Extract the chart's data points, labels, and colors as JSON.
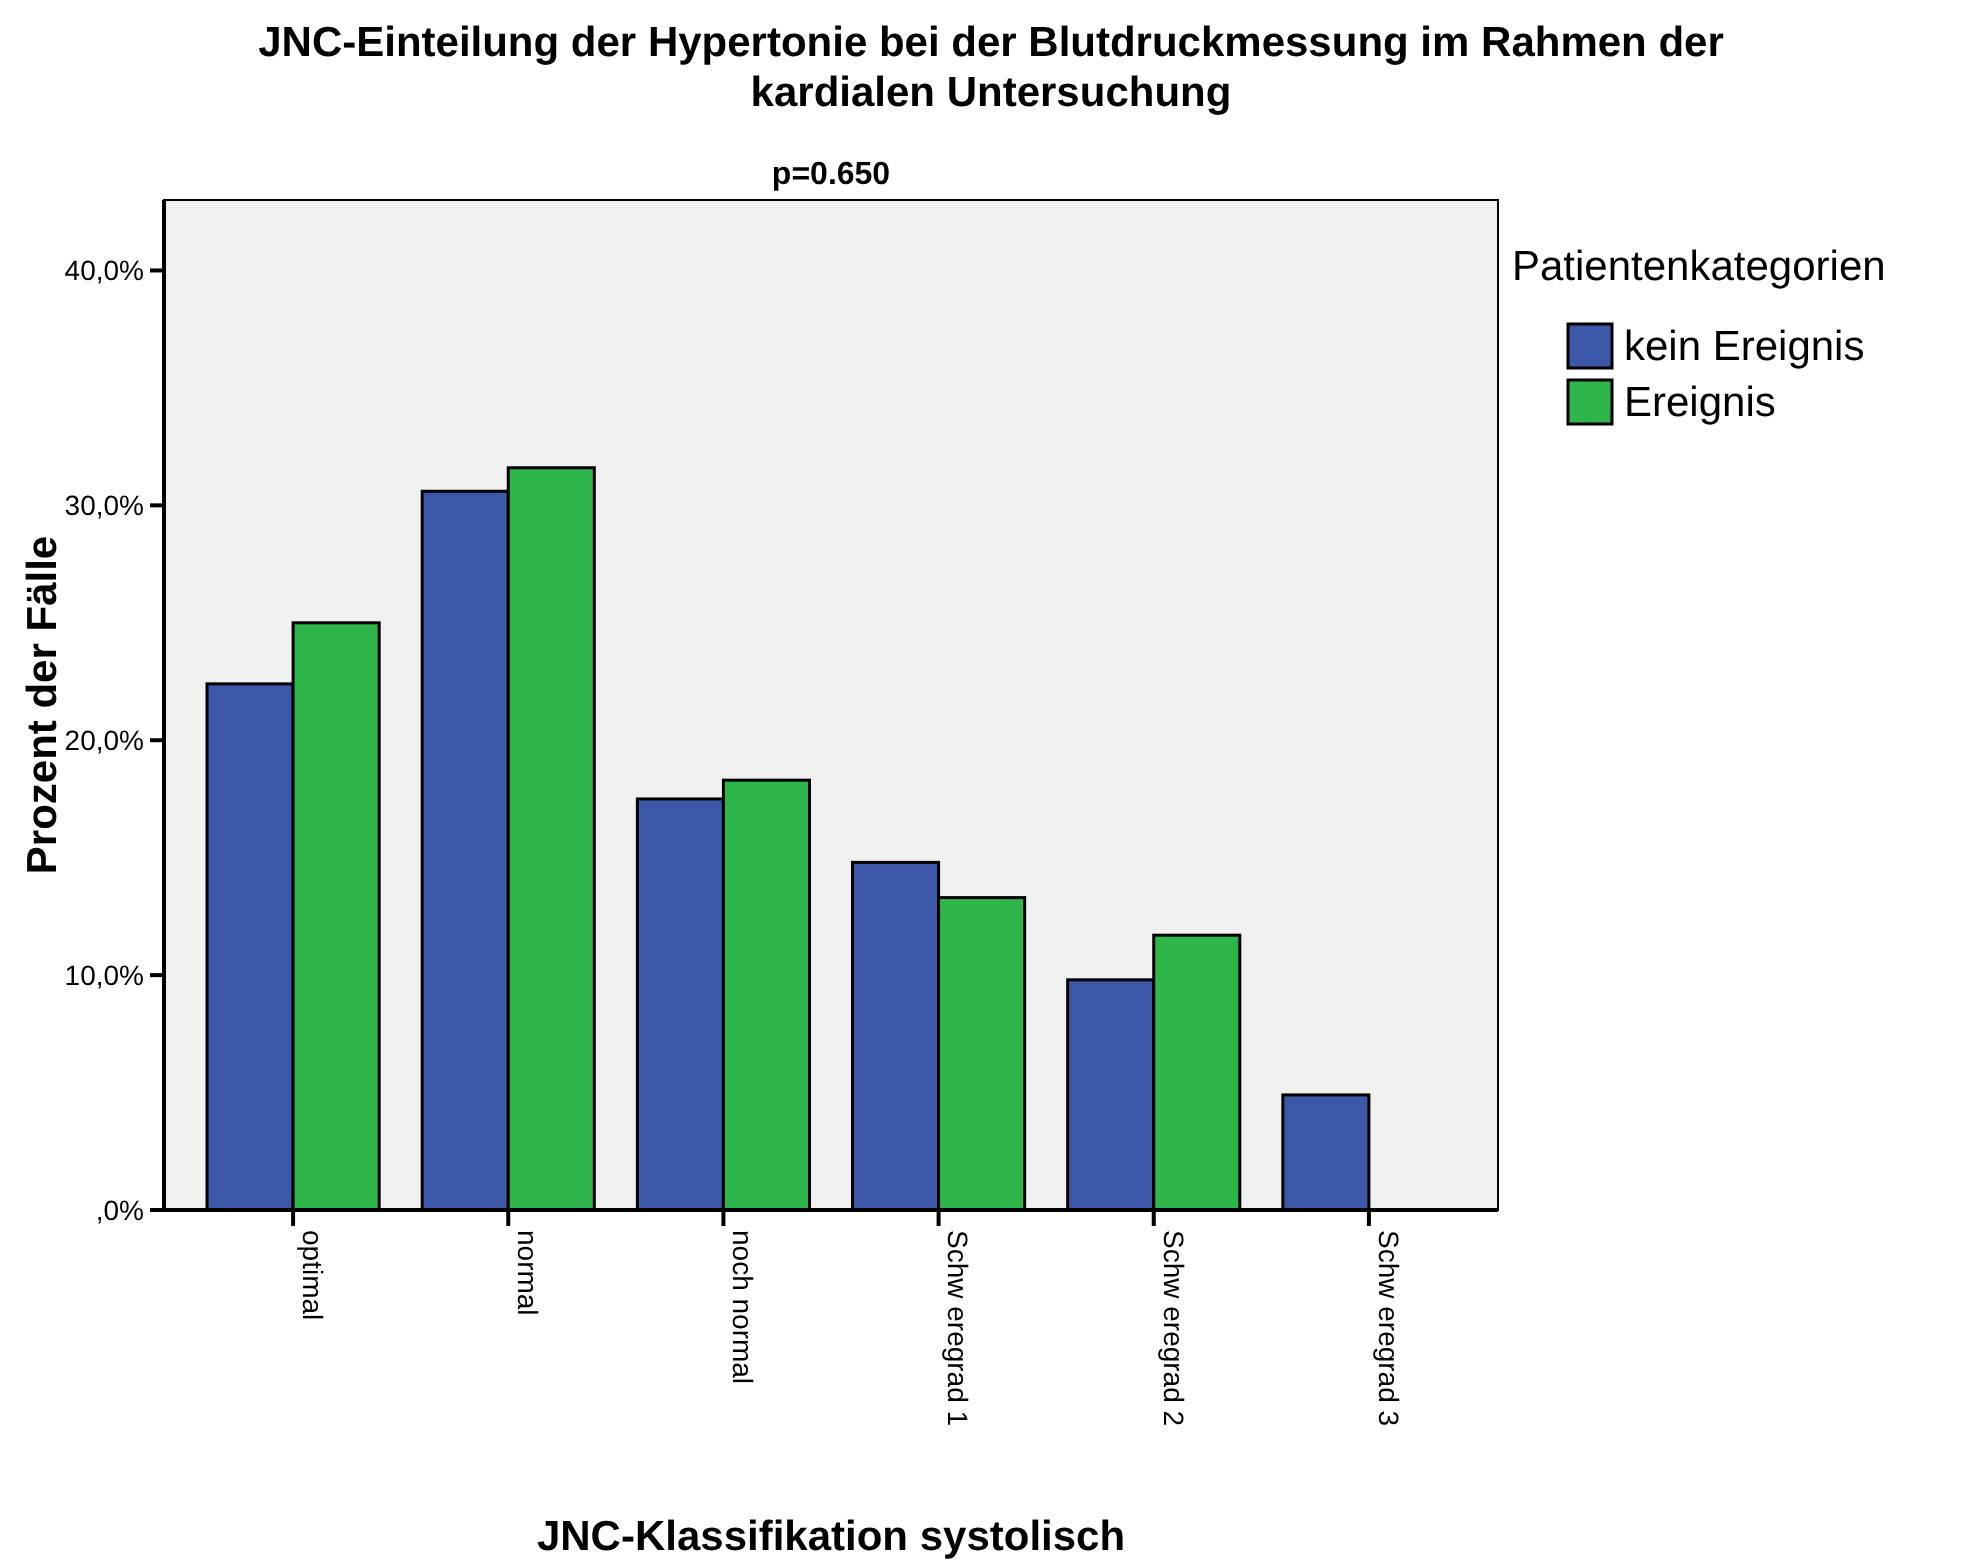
{
  "chart_data": {
    "type": "bar",
    "title": "JNC-Einteilung der Hypertonie bei der Blutdruckmessung im Rahmen der kardialen Untersuchung",
    "subtitle": "p=0.650",
    "xlabel": "JNC-Klassifikation systolisch",
    "ylabel": "Prozent der Fälle",
    "legend_title": "Patientenkategorien",
    "legend": "top right",
    "categories": [
      "optimal",
      "normal",
      "noch normal",
      "Schw eregrad 1",
      "Schw eregrad 2",
      "Schw eregrad 3"
    ],
    "series": [
      {
        "name": "kein Ereignis",
        "color": "#3d57a9",
        "values": [
          22.4,
          30.6,
          17.5,
          14.8,
          9.8,
          4.9
        ]
      },
      {
        "name": "Ereignis",
        "color": "#2fb64a",
        "values": [
          25.0,
          31.6,
          18.3,
          13.3,
          11.7,
          0
        ]
      }
    ],
    "ylim": [
      0,
      43
    ],
    "yticks": [
      {
        "value": 0,
        "label": ",0%"
      },
      {
        "value": 10,
        "label": "10,0%"
      },
      {
        "value": 20,
        "label": "20,0%"
      },
      {
        "value": 30,
        "label": "30,0%"
      },
      {
        "value": 40,
        "label": "40,0%"
      }
    ]
  }
}
